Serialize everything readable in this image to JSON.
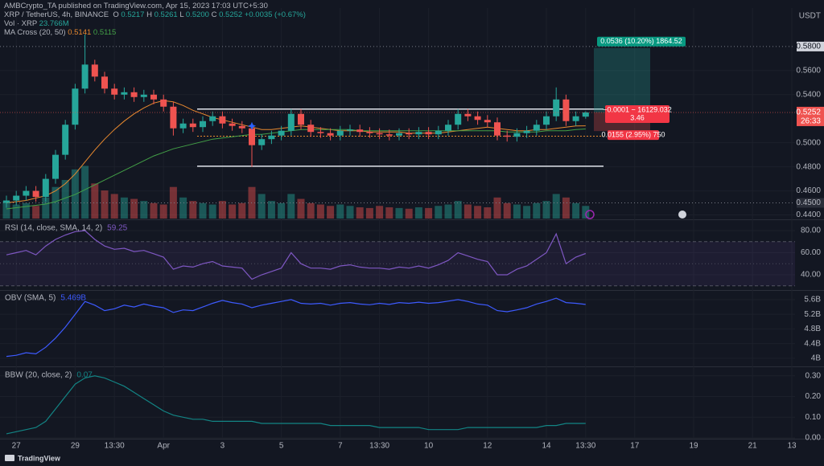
{
  "header": {
    "publisher": "AMBCrypto_TA published on TradingView.com, Apr 15, 2023 17:03 UTC+5:30",
    "symbol": "XRP / TetherUS, 4h, BINANCE",
    "ohlc": [
      [
        "O",
        "0.5217"
      ],
      [
        "H",
        "0.5261"
      ],
      [
        "L",
        "0.5200"
      ],
      [
        "C",
        "0.5252"
      ]
    ],
    "change": "+0.0035 (+0.67%)",
    "volume_label": "Vol · XRP",
    "volume_value": "23.766M",
    "ma_label": "MA Cross (20, 50)",
    "ma_values": [
      "0.5141",
      "0.5115"
    ],
    "footer": "TradingView"
  },
  "chart_data": [
    {
      "type": "candlestick",
      "currency": "USDT",
      "categories": [
        null,
        "27",
        null,
        null,
        null,
        null,
        null,
        "29",
        null,
        null,
        null,
        "13:30",
        null,
        null,
        null,
        null,
        "Apr",
        null,
        null,
        null,
        null,
        null,
        "3",
        null,
        null,
        null,
        null,
        null,
        "5",
        null,
        null,
        null,
        null,
        null,
        "7",
        null,
        null,
        null,
        "13:30",
        null,
        null,
        null,
        null,
        "10",
        null,
        null,
        null,
        null,
        null,
        "12",
        null,
        null,
        null,
        null,
        null,
        "14",
        null,
        null,
        null,
        "13:30",
        null,
        null,
        null,
        null,
        "17",
        null,
        null,
        null,
        null,
        null,
        "19",
        null,
        null,
        null,
        null,
        null,
        "21",
        null,
        null,
        null,
        "13"
      ],
      "open": [
        0.45,
        0.452,
        0.456,
        0.46,
        0.455,
        0.47,
        0.49,
        0.515,
        0.545,
        0.565,
        0.555,
        0.545,
        0.54,
        0.542,
        0.538,
        0.54,
        0.536,
        0.53,
        0.512,
        0.516,
        0.513,
        0.518,
        0.522,
        0.516,
        0.514,
        0.512,
        0.498,
        0.503,
        0.506,
        0.51,
        0.524,
        0.515,
        0.509,
        0.508,
        0.506,
        0.51,
        0.511,
        0.509,
        0.508,
        0.507,
        0.506,
        0.508,
        0.507,
        0.509,
        0.507,
        0.51,
        0.515,
        0.524,
        0.522,
        0.519,
        0.517,
        0.506,
        0.505,
        0.508,
        0.51,
        0.515,
        0.522,
        0.536,
        0.518,
        0.5217,
        null,
        null,
        null,
        null,
        null,
        null,
        null,
        null,
        null,
        null,
        null,
        null,
        null,
        null,
        null,
        null,
        null,
        null,
        null,
        null,
        null
      ],
      "high": [
        0.456,
        0.46,
        0.464,
        0.464,
        0.474,
        0.494,
        0.519,
        0.549,
        0.59,
        0.569,
        0.559,
        0.549,
        0.546,
        0.546,
        0.544,
        0.544,
        0.54,
        0.534,
        0.52,
        0.52,
        0.522,
        0.526,
        0.526,
        0.52,
        0.518,
        0.516,
        0.507,
        0.51,
        0.514,
        0.528,
        0.528,
        0.519,
        0.513,
        0.512,
        0.514,
        0.515,
        0.515,
        0.513,
        0.512,
        0.511,
        0.512,
        0.512,
        0.513,
        0.513,
        0.514,
        0.519,
        0.528,
        0.528,
        0.526,
        0.523,
        0.521,
        0.51,
        0.512,
        0.514,
        0.519,
        0.526,
        0.546,
        0.54,
        0.526,
        0.5261,
        null,
        null,
        null,
        null,
        null,
        null,
        null,
        null,
        null,
        null,
        null,
        null,
        null,
        null,
        null,
        null,
        null,
        null,
        null,
        null,
        null
      ],
      "low": [
        0.446,
        0.448,
        0.452,
        0.451,
        0.451,
        0.466,
        0.486,
        0.511,
        0.541,
        0.551,
        0.541,
        0.536,
        0.536,
        0.534,
        0.534,
        0.532,
        0.526,
        0.506,
        0.508,
        0.509,
        0.509,
        0.514,
        0.512,
        0.51,
        0.508,
        0.48,
        0.494,
        0.499,
        0.502,
        0.506,
        0.511,
        0.505,
        0.504,
        0.502,
        0.502,
        0.506,
        0.505,
        0.504,
        0.503,
        0.502,
        0.502,
        0.503,
        0.503,
        0.503,
        0.503,
        0.506,
        0.511,
        0.518,
        0.515,
        0.513,
        0.502,
        0.501,
        0.501,
        0.504,
        0.506,
        0.511,
        0.518,
        0.514,
        0.514,
        0.52,
        null,
        null,
        null,
        null,
        null,
        null,
        null,
        null,
        null,
        null,
        null,
        null,
        null,
        null,
        null,
        null,
        null,
        null,
        null,
        null,
        null
      ],
      "close": [
        0.452,
        0.456,
        0.46,
        0.455,
        0.47,
        0.49,
        0.515,
        0.545,
        0.565,
        0.555,
        0.545,
        0.54,
        0.542,
        0.538,
        0.54,
        0.536,
        0.53,
        0.512,
        0.516,
        0.513,
        0.518,
        0.522,
        0.516,
        0.514,
        0.512,
        0.498,
        0.503,
        0.506,
        0.51,
        0.524,
        0.515,
        0.509,
        0.508,
        0.506,
        0.51,
        0.511,
        0.509,
        0.508,
        0.507,
        0.506,
        0.508,
        0.507,
        0.509,
        0.507,
        0.51,
        0.515,
        0.524,
        0.522,
        0.519,
        0.517,
        0.506,
        0.505,
        0.508,
        0.51,
        0.515,
        0.522,
        0.536,
        0.518,
        0.522,
        0.5252,
        null,
        null,
        null,
        null,
        null,
        null,
        null,
        null,
        null,
        null,
        null,
        null,
        null,
        null,
        null,
        null,
        null,
        null,
        null,
        null,
        null
      ],
      "volume": [
        25,
        20,
        22,
        18,
        30,
        45,
        55,
        70,
        75,
        50,
        40,
        35,
        30,
        28,
        25,
        22,
        20,
        45,
        30,
        25,
        22,
        20,
        25,
        20,
        22,
        45,
        35,
        25,
        22,
        35,
        28,
        22,
        20,
        18,
        20,
        18,
        16,
        15,
        18,
        16,
        15,
        14,
        16,
        15,
        18,
        20,
        25,
        20,
        18,
        16,
        30,
        22,
        20,
        18,
        22,
        25,
        35,
        30,
        22,
        18,
        null,
        null,
        null,
        null,
        null,
        null,
        null,
        null,
        null,
        null,
        null,
        null,
        null,
        null,
        null,
        null,
        null,
        null,
        null,
        null,
        null
      ],
      "volume_lim": [
        0,
        300
      ],
      "up_color": "#26a69a",
      "down_color": "#ef5350",
      "ma": [
        {
          "color": "#e8892f",
          "values": [
            0.45,
            0.451,
            0.452,
            0.454,
            0.456,
            0.46,
            0.466,
            0.474,
            0.484,
            0.494,
            0.503,
            0.511,
            0.518,
            0.524,
            0.529,
            0.533,
            0.535,
            0.534,
            0.531,
            0.527,
            0.524,
            0.521,
            0.519,
            0.517,
            0.515,
            0.513,
            0.511,
            0.511,
            0.512,
            0.513,
            0.514,
            0.513,
            0.512,
            0.511,
            0.51,
            0.51,
            0.51,
            0.509,
            0.509,
            0.509,
            0.509,
            0.508,
            0.508,
            0.508,
            0.508,
            0.509,
            0.51,
            0.511,
            0.512,
            0.513,
            0.512,
            0.511,
            0.51,
            0.51,
            0.511,
            0.511,
            0.512,
            0.513,
            0.514,
            0.5141,
            null,
            null,
            null,
            null,
            null,
            null,
            null,
            null,
            null,
            null,
            null,
            null,
            null,
            null,
            null,
            null,
            null,
            null,
            null,
            null,
            null
          ]
        },
        {
          "color": "#43a047",
          "values": [
            0.445,
            0.446,
            0.447,
            0.448,
            0.449,
            0.451,
            0.454,
            0.457,
            0.461,
            0.465,
            0.469,
            0.473,
            0.477,
            0.481,
            0.485,
            0.489,
            0.492,
            0.495,
            0.497,
            0.499,
            0.501,
            0.503,
            0.504,
            0.505,
            0.506,
            0.507,
            0.507,
            0.508,
            0.509,
            0.51,
            0.511,
            0.511,
            0.511,
            0.511,
            0.511,
            0.511,
            0.51,
            0.51,
            0.51,
            0.51,
            0.51,
            0.51,
            0.51,
            0.51,
            0.51,
            0.51,
            0.51,
            0.51,
            0.51,
            0.51,
            0.51,
            0.509,
            0.509,
            0.509,
            0.509,
            0.51,
            0.51,
            0.51,
            0.511,
            0.5115,
            null,
            null,
            null,
            null,
            null,
            null,
            null,
            null,
            null,
            null,
            null,
            null,
            null,
            null,
            null,
            null,
            null,
            null,
            null,
            null,
            null
          ]
        }
      ],
      "ma_cross": {
        "x": 25,
        "y": 0.514
      },
      "ylim": [
        0.437,
        0.612
      ],
      "yticks": [
        {
          "value": 0.56,
          "label": "0.5600"
        },
        {
          "value": 0.54,
          "label": "0.5400"
        },
        {
          "value": 0.5,
          "label": "0.5000"
        },
        {
          "value": 0.48,
          "label": "0.4800"
        },
        {
          "value": 0.46,
          "label": "0.4600"
        },
        {
          "value": 0.44,
          "label": "0.4400"
        }
      ],
      "levels_boxed": [
        {
          "value": 0.58,
          "label": "0.5800"
        },
        {
          "value": 0.45,
          "label": "0.4500"
        }
      ],
      "last_price": {
        "value": 0.5252,
        "label": "0.5252",
        "countdown": "26:33"
      },
      "range_lines": [
        0.528,
        0.4805
      ],
      "dotted_line": 0.5055,
      "position": {
        "target": 0.5788,
        "entry": 0.5252,
        "stop": 0.5097,
        "target_label": "0.0536 (10.20%) 1864.52",
        "entry_label": "−0.0001 − 16129.032",
        "entry_ratio": "3.46",
        "stop_label": "0.0155 (2.95%) 750"
      }
    },
    {
      "type": "line",
      "title": "RSI (14, close, SMA, 14, 2)",
      "legend_value": "59.25",
      "series": [
        {
          "color": "#7e57c2",
          "values": [
            58,
            60,
            62,
            58,
            66,
            72,
            76,
            79,
            80,
            72,
            66,
            63,
            64,
            61,
            62,
            59,
            56,
            45,
            48,
            47,
            50,
            52,
            48,
            47,
            46,
            36,
            40,
            43,
            46,
            60,
            50,
            46,
            46,
            45,
            48,
            49,
            47,
            46,
            46,
            45,
            47,
            46,
            48,
            46,
            49,
            53,
            60,
            57,
            54,
            52,
            40,
            40,
            45,
            48,
            54,
            60,
            77,
            50,
            56,
            59.25,
            null,
            null,
            null,
            null,
            null,
            null,
            null,
            null,
            null,
            null,
            null,
            null,
            null,
            null,
            null,
            null,
            null,
            null,
            null,
            null,
            null
          ]
        }
      ],
      "bands": [
        70,
        30
      ],
      "midline": 50,
      "ylim": [
        26.9,
        88.7
      ],
      "yticks": [
        {
          "value": 80,
          "label": "80.00"
        },
        {
          "value": 60,
          "label": "60.00"
        },
        {
          "value": 40,
          "label": "40.00"
        }
      ]
    },
    {
      "type": "line",
      "title": "OBV (SMA, 5)",
      "legend_value": "5.469B",
      "series": [
        {
          "color": "#3d5afe",
          "values": [
            4.05,
            4.08,
            4.15,
            4.12,
            4.3,
            4.55,
            4.85,
            5.2,
            5.55,
            5.45,
            5.3,
            5.35,
            5.45,
            5.4,
            5.48,
            5.42,
            5.38,
            5.25,
            5.32,
            5.3,
            5.4,
            5.5,
            5.58,
            5.52,
            5.48,
            5.38,
            5.45,
            5.5,
            5.55,
            5.6,
            5.5,
            5.48,
            5.5,
            5.45,
            5.5,
            5.52,
            5.48,
            5.46,
            5.5,
            5.47,
            5.52,
            5.5,
            5.53,
            5.5,
            5.52,
            5.56,
            5.6,
            5.55,
            5.48,
            5.45,
            5.3,
            5.27,
            5.32,
            5.38,
            5.48,
            5.55,
            5.64,
            5.52,
            5.5,
            5.469,
            null,
            null,
            null,
            null,
            null,
            null,
            null,
            null,
            null,
            null,
            null,
            null,
            null,
            null,
            null,
            null,
            null,
            null,
            null,
            null,
            null
          ]
        }
      ],
      "ylim": [
        3.8,
        5.84
      ],
      "yticks": [
        {
          "value": 5.6,
          "label": "5.6B"
        },
        {
          "value": 5.2,
          "label": "5.2B"
        },
        {
          "value": 4.8,
          "label": "4.8B"
        },
        {
          "value": 4.4,
          "label": "4.4B"
        },
        {
          "value": 4,
          "label": "4B"
        }
      ]
    },
    {
      "type": "line",
      "title": "BBW (20, close, 2)",
      "legend_value": "0.07",
      "series": [
        {
          "color": "#138484",
          "values": [
            0.02,
            0.03,
            0.04,
            0.05,
            0.08,
            0.14,
            0.2,
            0.26,
            0.29,
            0.3,
            0.29,
            0.27,
            0.25,
            0.22,
            0.19,
            0.16,
            0.13,
            0.11,
            0.1,
            0.09,
            0.09,
            0.08,
            0.08,
            0.08,
            0.08,
            0.08,
            0.07,
            0.07,
            0.07,
            0.07,
            0.07,
            0.07,
            0.07,
            0.06,
            0.06,
            0.06,
            0.06,
            0.06,
            0.05,
            0.05,
            0.05,
            0.05,
            0.05,
            0.04,
            0.04,
            0.04,
            0.04,
            0.05,
            0.05,
            0.05,
            0.05,
            0.05,
            0.05,
            0.05,
            0.05,
            0.06,
            0.06,
            0.07,
            0.07,
            0.07,
            null,
            null,
            null,
            null,
            null,
            null,
            null,
            null,
            null,
            null,
            null,
            null,
            null,
            null,
            null,
            null,
            null,
            null,
            null,
            null,
            null
          ]
        }
      ],
      "ylim": [
        0,
        0.338
      ],
      "yticks": [
        {
          "value": 0.3,
          "label": "0.30"
        },
        {
          "value": 0.2,
          "label": "0.20"
        },
        {
          "value": 0.1,
          "label": "0.10"
        },
        {
          "value": 0,
          "label": "0.00"
        }
      ]
    }
  ]
}
